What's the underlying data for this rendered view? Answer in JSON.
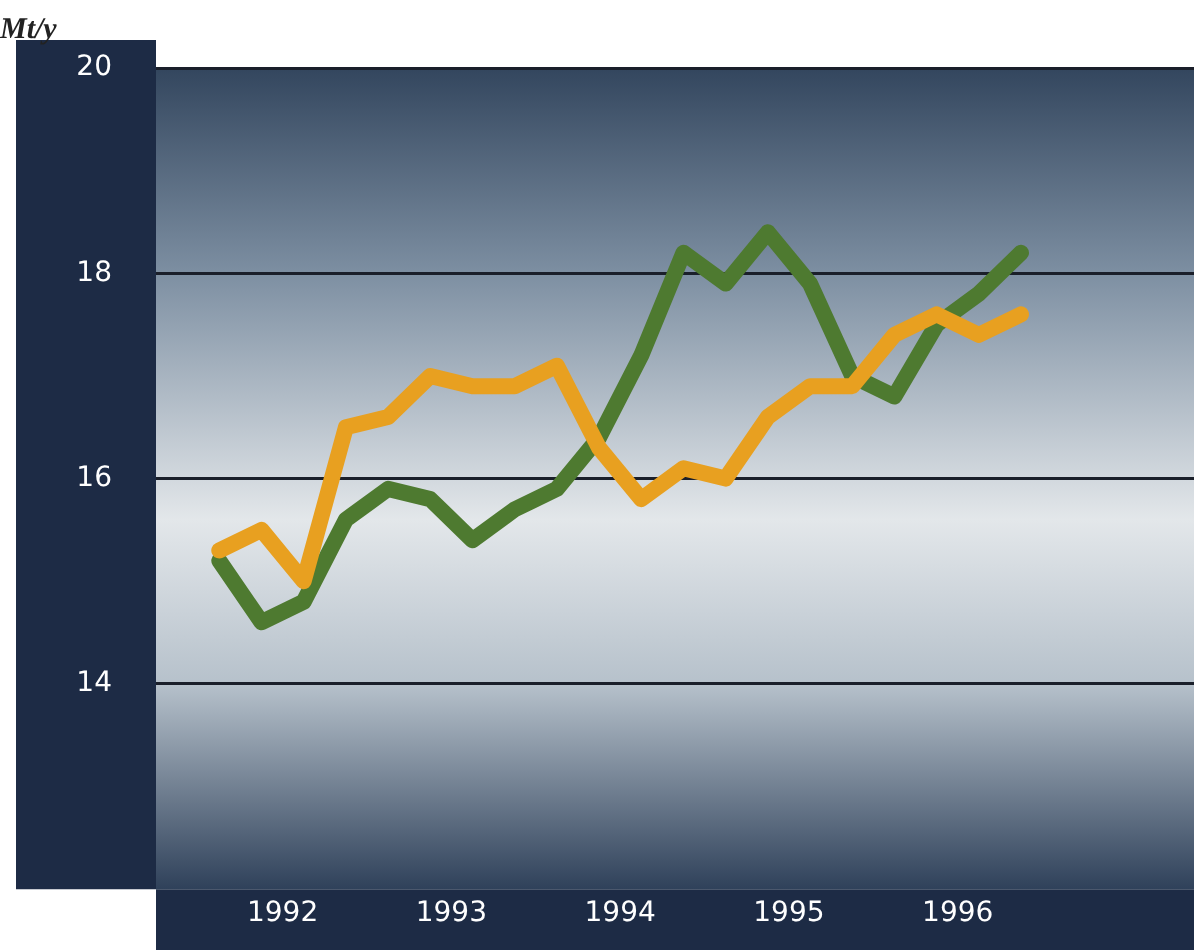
{
  "chart_data": {
    "type": "line",
    "ylabel": "Mt/y",
    "x": [
      1991.625,
      1991.875,
      1992.125,
      1992.375,
      1992.625,
      1992.875,
      1993.125,
      1993.375,
      1993.625,
      1993.875,
      1994.125,
      1994.375,
      1994.625,
      1994.875,
      1995.125,
      1995.375,
      1995.625,
      1995.875,
      1996.125,
      1996.375
    ],
    "series": [
      {
        "color": "#e8a020",
        "values": [
          15.3,
          15.5,
          15.0,
          16.5,
          16.6,
          17.0,
          16.9,
          16.9,
          17.1,
          16.3,
          15.8,
          16.1,
          16.0,
          16.6,
          16.9,
          16.9,
          17.4,
          17.6,
          17.4,
          17.6
        ]
      },
      {
        "color": "#4e7a30",
        "values": [
          15.2,
          14.6,
          14.8,
          15.6,
          15.9,
          15.8,
          15.4,
          15.7,
          15.9,
          16.4,
          17.2,
          18.2,
          17.9,
          18.4,
          17.9,
          17.0,
          16.8,
          17.5,
          17.8,
          18.2
        ]
      }
    ],
    "xlim": [
      1991.25,
      1997.4
    ],
    "xticks": [
      1992,
      1993,
      1994,
      1995,
      1996
    ],
    "ylim": [
      12,
      20
    ],
    "yticks": [
      14,
      16,
      18,
      20
    ],
    "grid": "y",
    "legend": false,
    "marker": "none",
    "line_style": "solid"
  }
}
